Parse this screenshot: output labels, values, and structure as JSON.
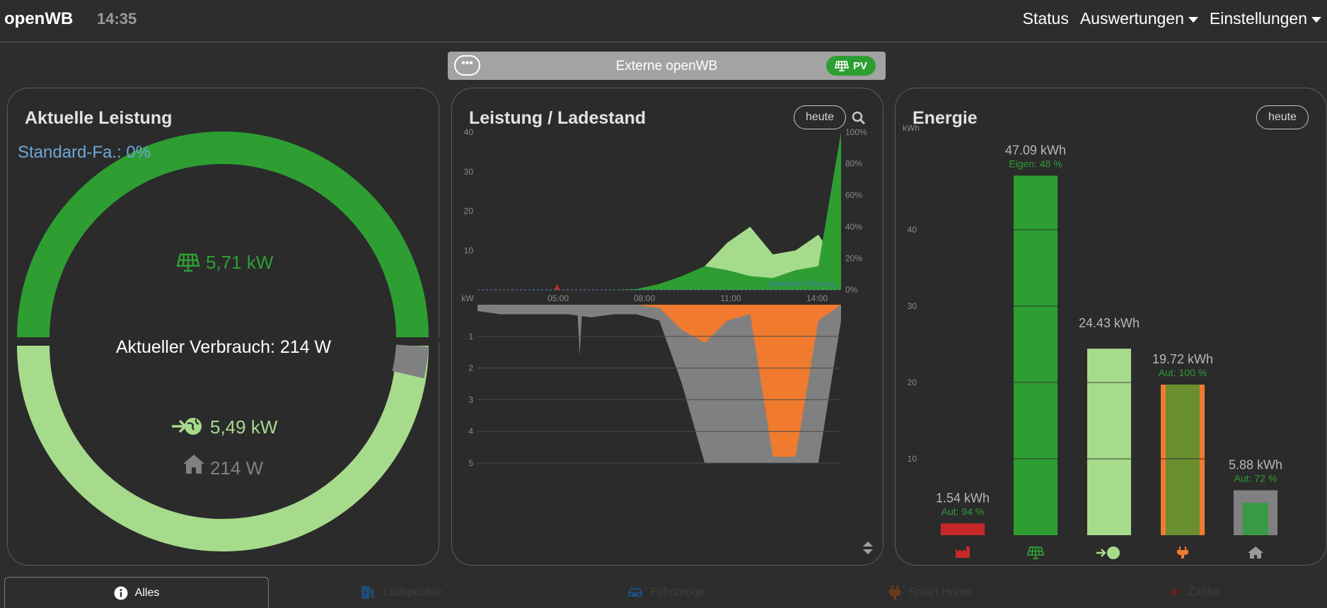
{
  "navbar": {
    "brand": "openWB",
    "time": "14:35",
    "items": [
      {
        "label": "Status"
      },
      {
        "label": "Auswertungen"
      },
      {
        "label": "Einstellungen"
      }
    ]
  },
  "charge_point": {
    "menu_dots": "•••",
    "title": "Externe openWB",
    "mode_badge": "PV"
  },
  "power_card": {
    "title": "Aktuelle Leistung",
    "vehicle_label": "Standard-Fa.: 0%",
    "pv_value": "5,71 kW",
    "consumption_label": "Aktueller Verbrauch: 214 W",
    "export_value": "5,49 kW",
    "house_value": "214 W",
    "colors": {
      "pv": "#2e9e33",
      "export": "#a7db8c",
      "house": "#808080",
      "vehicle_label": "#6ea7d8"
    }
  },
  "chart_card": {
    "title": "Leistung / Ladestand",
    "day_button": "heute",
    "vehicle_series_label": "Standard-Fahrzeug"
  },
  "energy_card": {
    "title": "Energie",
    "day_button": "heute"
  },
  "chart_data": [
    {
      "type": "area",
      "title": "Leistung / Ladestand",
      "x_ticks": [
        "05:00",
        "08:00",
        "11:00",
        "14:00"
      ],
      "y_left_top_label": "",
      "y_left_top_ticks": [
        "40",
        "30",
        "20",
        "10"
      ],
      "y_right_ticks": [
        "100%",
        "80%",
        "60%",
        "40%",
        "20%",
        "0%"
      ],
      "y_left_unit": "kW",
      "y_left_bottom_ticks": [
        "1",
        "2",
        "3",
        "4",
        "5"
      ],
      "x": [
        "02:00",
        "03:00",
        "04:00",
        "05:00",
        "06:00",
        "07:00",
        "08:00",
        "09:00",
        "10:00",
        "11:00",
        "11:30",
        "12:00",
        "12:30",
        "13:00",
        "13:30",
        "14:00",
        "14:30"
      ],
      "series": [
        {
          "name": "",
          "color": "#2e9e33",
          "values": [
            0,
            0,
            0,
            0,
            0,
            0,
            0,
            0.2,
            1.5,
            3.5,
            6,
            5,
            3.5,
            3,
            5,
            6,
            40
          ]
        },
        {
          "name": "",
          "color": "#a7db8c",
          "values": [
            0,
            0,
            0,
            0,
            0,
            0,
            0,
            0,
            0.5,
            2,
            6,
            12,
            16,
            9,
            10,
            14,
            5.5
          ]
        },
        {
          "name": "",
          "color": "#c62828",
          "values": [
            0,
            0,
            0,
            0,
            0,
            0,
            0,
            0,
            0,
            0,
            0,
            0,
            0,
            0,
            0,
            0,
            0
          ]
        },
        {
          "name": "",
          "color": "#808080",
          "values": [
            0.2,
            0.3,
            0.3,
            0.3,
            0.3,
            0.4,
            0.3,
            0.3,
            0.5,
            2.5,
            5,
            5,
            5,
            5,
            5,
            5,
            0.5
          ]
        },
        {
          "name": "",
          "color": "#f07a2e",
          "values": [
            0,
            0,
            0,
            0,
            0,
            0,
            0,
            0,
            0.1,
            0.8,
            1.2,
            0.5,
            0.3,
            4.8,
            4.8,
            0.5,
            0
          ]
        }
      ],
      "grid": true
    },
    {
      "type": "bar",
      "title": "Energie",
      "ylabel": "kWh",
      "ylim": [
        0,
        50
      ],
      "y_ticks": [
        "10",
        "20",
        "30",
        "40"
      ],
      "categories": [
        "Netzbezug",
        "PV",
        "Einspeisung",
        "Ladepunkte",
        "Hausverbrauch"
      ],
      "values": [
        1.54,
        47.09,
        24.43,
        19.72,
        5.88
      ],
      "value_labels": [
        "1.54 kWh",
        "47.09 kWh",
        "24.43 kWh",
        "19.72 kWh",
        "5.88 kWh"
      ],
      "sub_labels": [
        "Aut: 94 %",
        "Eigen: 48 %",
        "",
        "Aut: 100 %",
        "Aut: 72 %"
      ],
      "colors": [
        "#c62828",
        "#2e9e33",
        "#a7db8c",
        "#f07a2e",
        "#808080"
      ],
      "inner_colors": [
        "",
        "",
        "",
        "#6a8f30",
        "#3a9a44"
      ],
      "inner_fractions": [
        0,
        0,
        0,
        1,
        0.72
      ]
    }
  ],
  "tabs": [
    {
      "label": "Alles"
    },
    {
      "label": "Ladepunkte"
    },
    {
      "label": "Fahrzeuge"
    },
    {
      "label": "Smart Home"
    },
    {
      "label": "Zähler"
    }
  ]
}
